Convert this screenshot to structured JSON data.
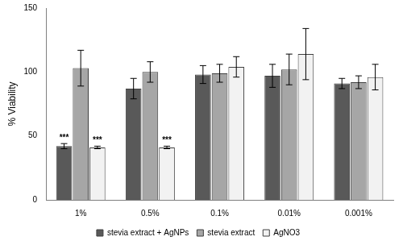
{
  "chart_data": {
    "type": "bar",
    "y_label": "% Viability",
    "categories": [
      "1%",
      "0.5%",
      "0.1%",
      "0.01%",
      "0.001%"
    ],
    "series": [
      {
        "name": "stevia extract + AgNPs",
        "color": "#595959",
        "values": [
          42,
          87,
          98,
          97,
          91
        ],
        "errors": [
          2,
          8,
          7,
          9,
          4
        ],
        "annotations": [
          "***",
          null,
          null,
          null,
          null
        ]
      },
      {
        "name": "stevia extract",
        "color": "#a6a6a6",
        "values": [
          103,
          100,
          99,
          102,
          92
        ],
        "errors": [
          14,
          8,
          7,
          12,
          5
        ],
        "annotations": [
          null,
          null,
          null,
          null,
          null
        ]
      },
      {
        "name": "AgNO3",
        "color": "#f2f2f2",
        "values": [
          41,
          41,
          104,
          114,
          96
        ],
        "errors": [
          1,
          1,
          8,
          20,
          10
        ],
        "annotations": [
          "***",
          "***",
          null,
          null,
          null
        ]
      }
    ],
    "ylim": [
      0,
      150
    ],
    "yticks": [
      0,
      50,
      100,
      150
    ],
    "grid": false,
    "legend": "bottom"
  }
}
